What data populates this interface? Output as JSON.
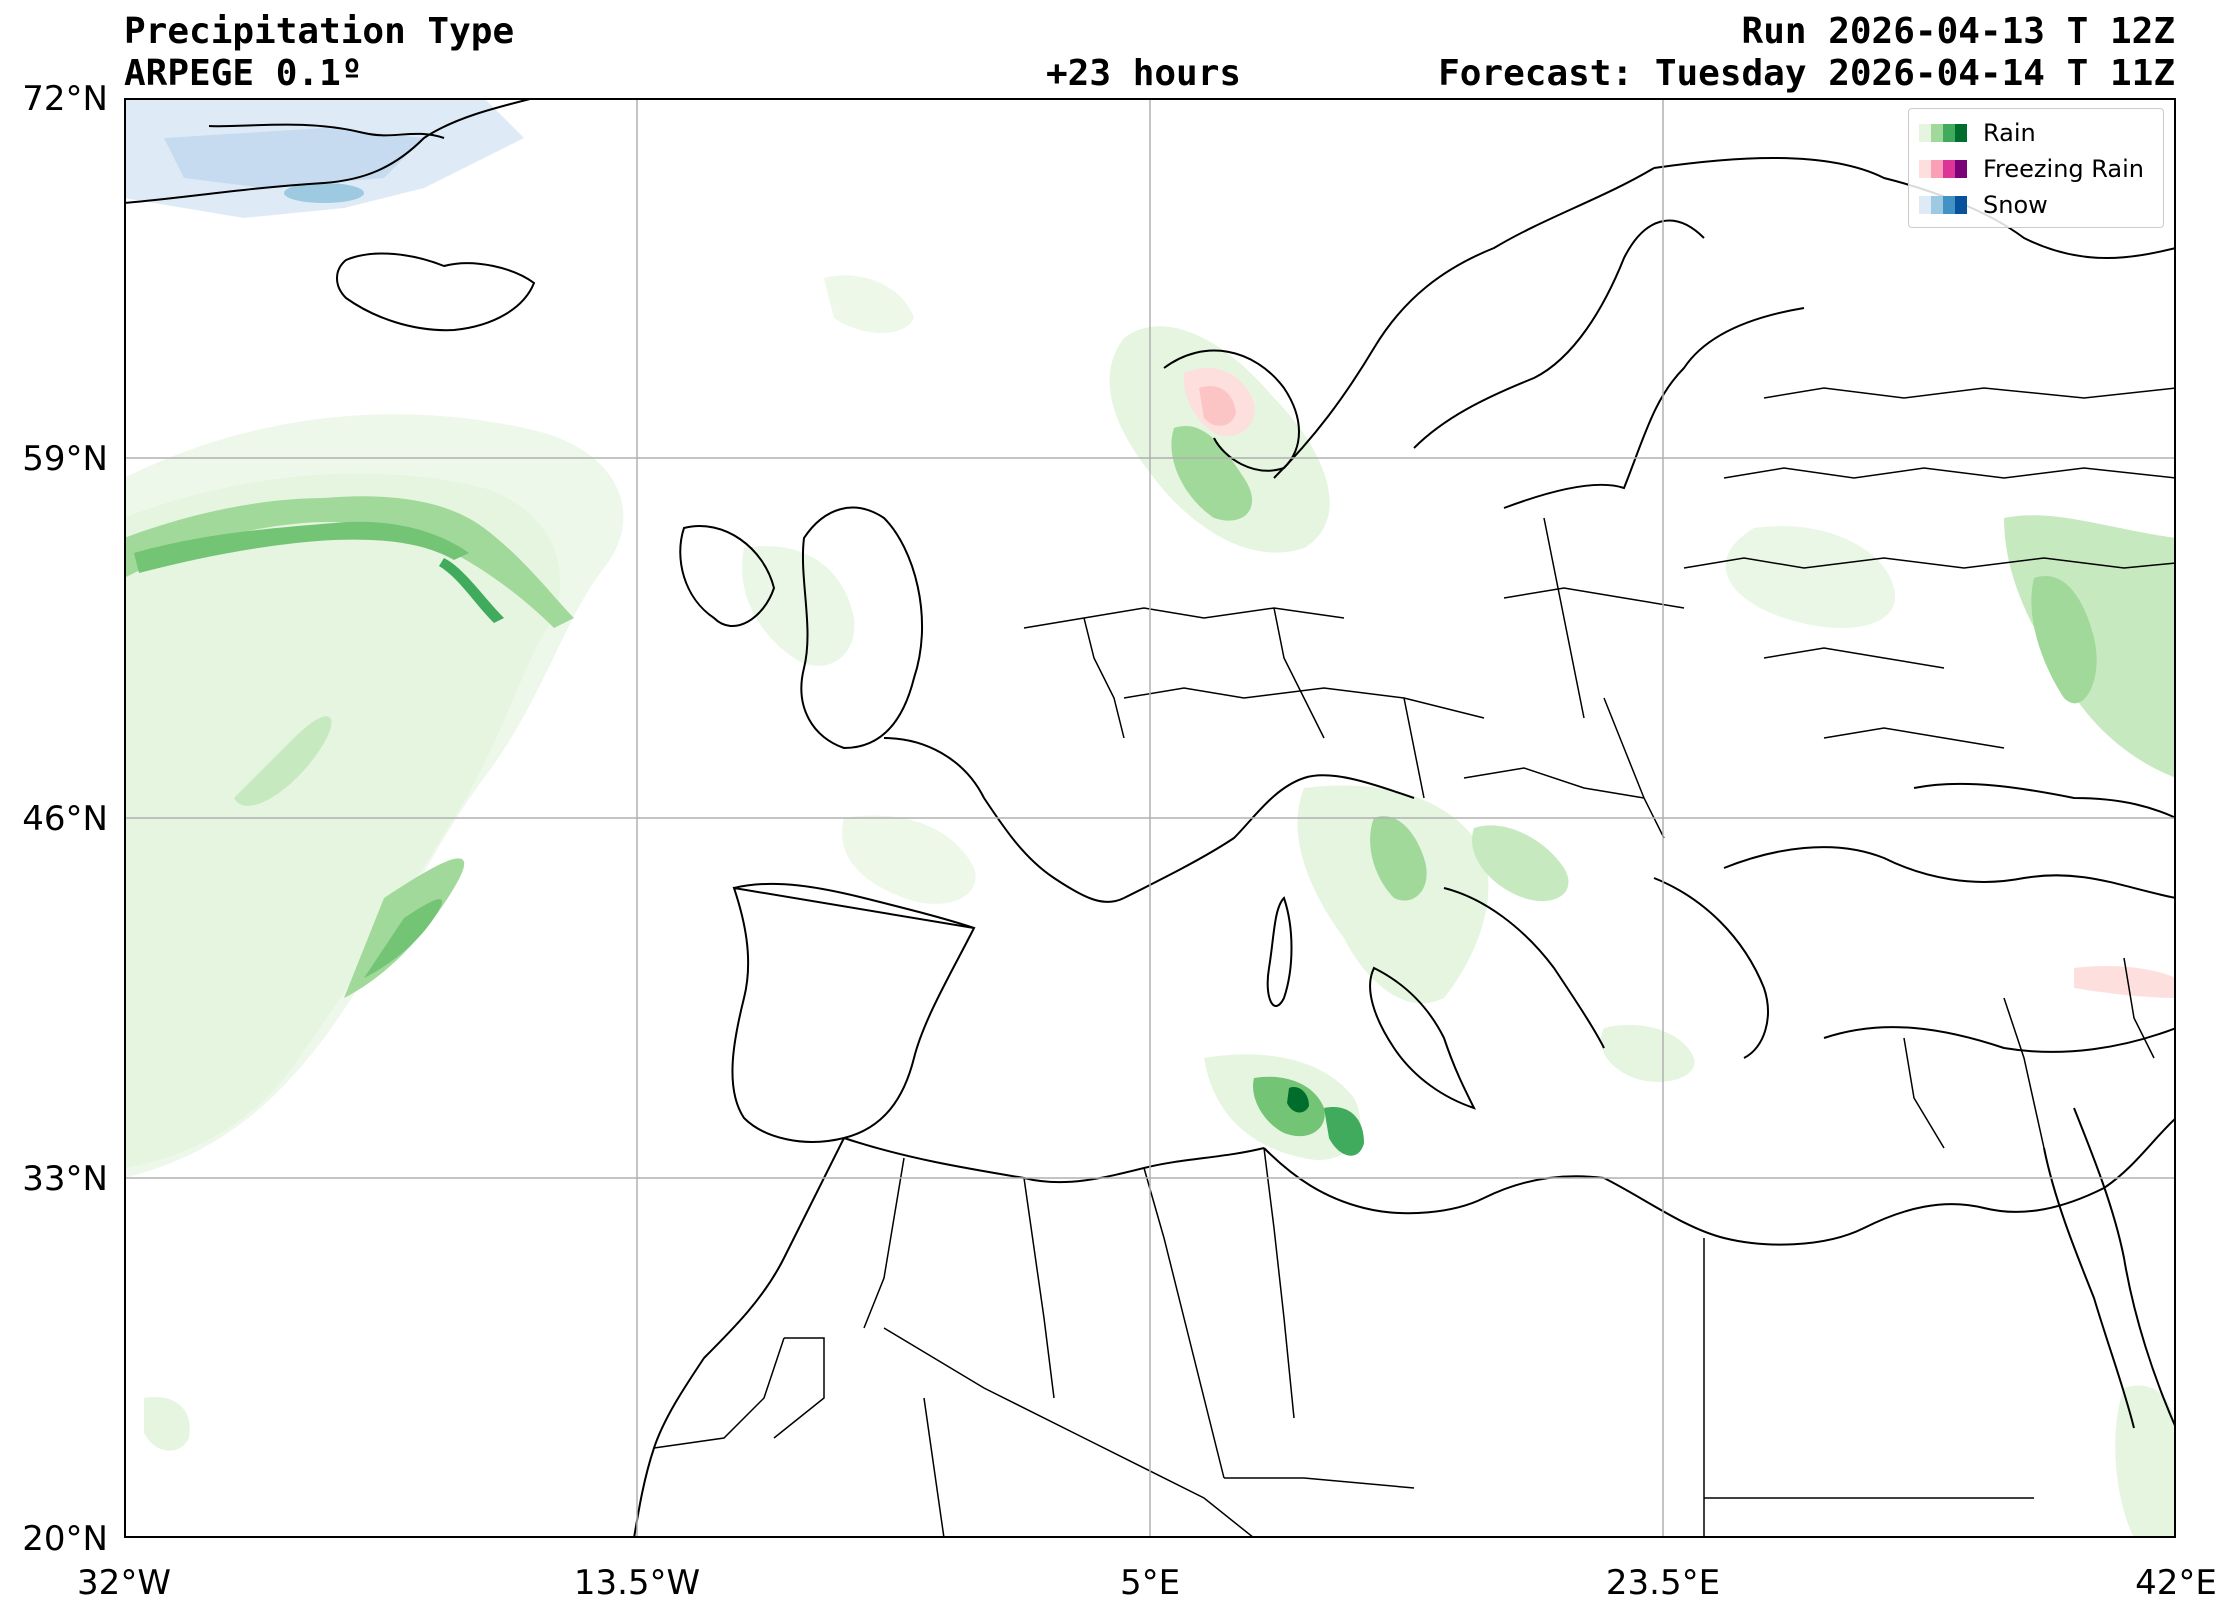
{
  "header": {
    "title": "Precipitation Type",
    "model": "ARPEGE 0.1º",
    "lead_time": "+23 hours",
    "run": "Run 2026-04-13 T 12Z",
    "forecast": "Forecast: Tuesday 2026-04-14 T 11Z"
  },
  "axes": {
    "lat_labels": [
      "72°N",
      "59°N",
      "46°N",
      "33°N",
      "20°N"
    ],
    "lon_labels": [
      "32°W",
      "13.5°W",
      "5°E",
      "23.5°E",
      "42°E"
    ],
    "lat_range": [
      20,
      72
    ],
    "lon_range": [
      -32,
      42
    ],
    "grid": true
  },
  "legend": {
    "placement": "top-right",
    "items": [
      {
        "label": "Rain",
        "colors": [
          "#e5f5e0",
          "#a1d99b",
          "#41ab5d",
          "#006d2c"
        ]
      },
      {
        "label": "Freezing Rain",
        "colors": [
          "#fde0dd",
          "#fa9fb5",
          "#dd3497",
          "#7a0177"
        ]
      },
      {
        "label": "Snow",
        "colors": [
          "#deebf7",
          "#9ecae1",
          "#4292c6",
          "#08519c"
        ]
      }
    ]
  }
}
